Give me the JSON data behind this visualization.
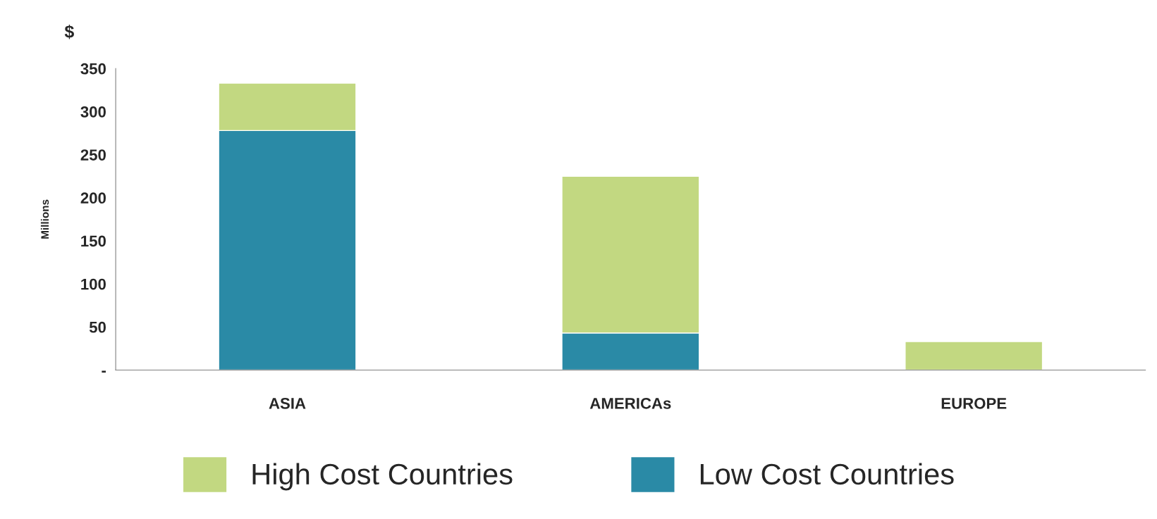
{
  "chart_data": {
    "type": "bar",
    "stacked": true,
    "categories": [
      "ASIA",
      "AMERICAs",
      "EUROPE"
    ],
    "series": [
      {
        "name": "Low Cost Countries",
        "color": "#2a8aa6",
        "values": [
          278,
          43,
          0
        ]
      },
      {
        "name": "High Cost Countries",
        "color": "#c2d881",
        "values": [
          55,
          182,
          33
        ]
      }
    ],
    "ylabel": "Millions",
    "annotations": [
      "$"
    ],
    "ylim": [
      0,
      350
    ],
    "yticks": [
      {
        "value": 0,
        "label": "-"
      },
      50,
      100,
      150,
      200,
      250,
      300,
      350
    ],
    "grid": false,
    "legend": "bottom"
  }
}
